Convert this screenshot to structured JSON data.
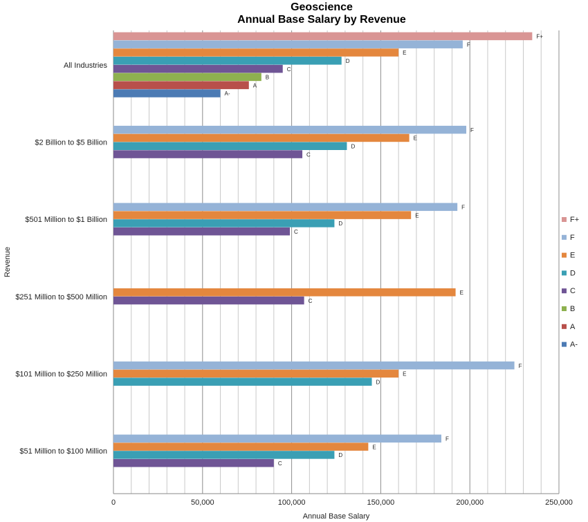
{
  "chart_data": {
    "type": "bar",
    "orientation": "horizontal",
    "title": "Geoscience",
    "subtitle": "Annual Base Salary by Revenue",
    "xlabel": "Annual Base Salary",
    "ylabel": "Revenue",
    "xlim": [
      0,
      250000
    ],
    "xticks": [
      0,
      50000,
      100000,
      150000,
      200000,
      250000
    ],
    "xtick_labels": [
      "0",
      "50,000",
      "100,000",
      "150,000",
      "200,000",
      "250,000"
    ],
    "grid": true,
    "legend_position": "right",
    "categories": [
      "All Industries",
      "$2 Billion to $5 Billion",
      "$501 Million to $1 Billion",
      "$251 Million to $500 Million",
      "$101 Million to $250 Million",
      "$51 Million to $100 Million"
    ],
    "series": [
      {
        "name": "F+",
        "color": "#d99594",
        "values": [
          235000,
          null,
          null,
          null,
          null,
          null
        ]
      },
      {
        "name": "F",
        "color": "#95b3d7",
        "values": [
          196000,
          198000,
          193000,
          null,
          225000,
          184000
        ]
      },
      {
        "name": "E",
        "color": "#e4873e",
        "values": [
          160000,
          166000,
          167000,
          192000,
          160000,
          143000
        ]
      },
      {
        "name": "D",
        "color": "#3a9fb4",
        "values": [
          128000,
          131000,
          124000,
          null,
          145000,
          124000
        ]
      },
      {
        "name": "C",
        "color": "#6f5595",
        "values": [
          95000,
          106000,
          99000,
          107000,
          null,
          90000
        ]
      },
      {
        "name": "B",
        "color": "#8eb14f",
        "values": [
          83000,
          null,
          null,
          null,
          null,
          null
        ]
      },
      {
        "name": "A",
        "color": "#b8504b",
        "values": [
          76000,
          null,
          null,
          null,
          null,
          null
        ]
      },
      {
        "name": "A-",
        "color": "#4c7bb4",
        "values": [
          60000,
          null,
          null,
          null,
          null,
          null
        ]
      }
    ]
  }
}
